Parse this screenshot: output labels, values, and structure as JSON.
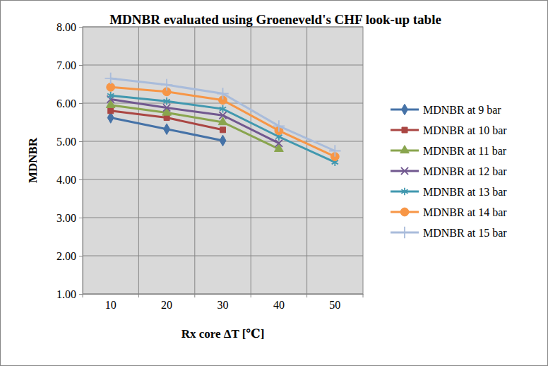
{
  "chart_data": {
    "type": "line",
    "title": "MDNBR evaluated using Groeneveld's CHF look-up table",
    "x_label": "Rx core ΔT [℃]",
    "y_label": "MDNBR",
    "categories": [
      "10",
      "20",
      "30",
      "40",
      "50"
    ],
    "series": [
      {
        "name": "MDNBR at 9 bar",
        "color": "#4572a7",
        "marker": "diamond",
        "values": [
          5.62,
          5.32,
          5.02,
          null,
          null
        ]
      },
      {
        "name": "MDNBR at 10 bar",
        "color": "#aa4643",
        "marker": "square",
        "values": [
          5.8,
          5.62,
          5.3,
          null,
          null
        ]
      },
      {
        "name": "MDNBR at 11 bar",
        "color": "#89a54e",
        "marker": "triangle",
        "values": [
          5.95,
          5.75,
          5.5,
          4.8,
          null
        ]
      },
      {
        "name": "MDNBR at 12 bar",
        "color": "#71588f",
        "marker": "x",
        "values": [
          6.1,
          5.88,
          5.68,
          4.95,
          null
        ]
      },
      {
        "name": "MDNBR at 13 bar",
        "color": "#4198af",
        "marker": "asterisk",
        "values": [
          6.2,
          6.05,
          5.85,
          5.12,
          4.45
        ]
      },
      {
        "name": "MDNBR at 14 bar",
        "color": "#f79646",
        "marker": "circle",
        "values": [
          6.42,
          6.3,
          6.08,
          5.28,
          4.6
        ]
      },
      {
        "name": "MDNBR at 15 bar",
        "color": "#a9bcdb",
        "marker": "plus",
        "values": [
          6.65,
          6.48,
          6.25,
          5.4,
          4.75
        ]
      }
    ],
    "ylim": [
      1,
      8
    ],
    "yticks": [
      {
        "value": 1,
        "label": "1.00"
      },
      {
        "value": 2,
        "label": "2.00"
      },
      {
        "value": 3,
        "label": "3.00"
      },
      {
        "value": 4,
        "label": "4.00"
      },
      {
        "value": 5,
        "label": "5.00"
      },
      {
        "value": 6,
        "label": "6.00"
      },
      {
        "value": 7,
        "label": "7.00"
      },
      {
        "value": 8,
        "label": "8.00"
      }
    ],
    "grid": true,
    "legend": "right"
  }
}
